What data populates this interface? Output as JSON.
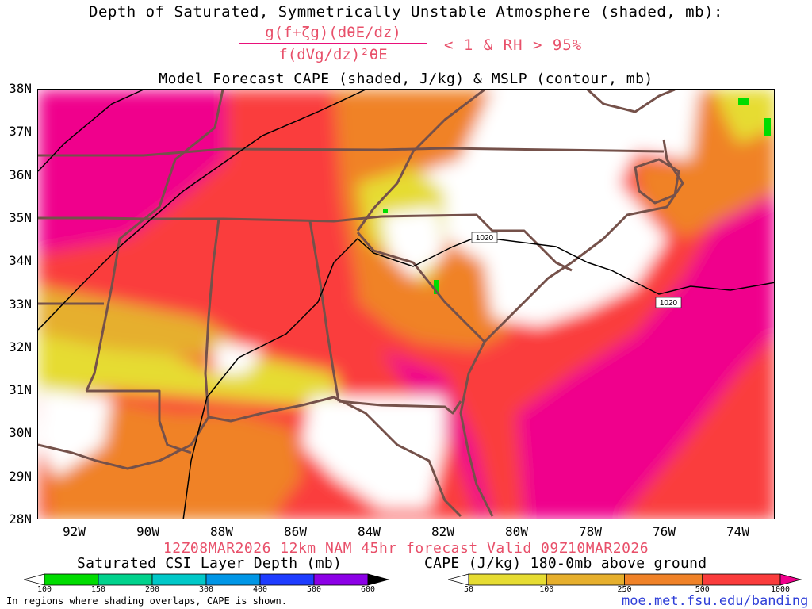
{
  "header": {
    "title": "Depth of Saturated, Symmetrically Unstable Atmosphere (shaded, mb):",
    "criterion_numerator": "g(f+ζg)(dθE/dz)",
    "criterion_denominator": "f(dVg/dz)²θE",
    "criterion_condition": "< 1 & RH > 95%",
    "subtitle": "Model Forecast CAPE (shaded, J/kg) & MSLP (contour, mb)"
  },
  "chart_data": {
    "type": "map",
    "lat_labels": [
      "38N",
      "37N",
      "36N",
      "35N",
      "34N",
      "33N",
      "32N",
      "31N",
      "30N",
      "29N",
      "28N"
    ],
    "lon_labels": [
      "92W",
      "90W",
      "88W",
      "86W",
      "84W",
      "82W",
      "80W",
      "78W",
      "76W",
      "74W"
    ],
    "lat_range": [
      28,
      38
    ],
    "lon_range": [
      -93,
      -73
    ],
    "mslp_contours": [
      {
        "label": "1020"
      },
      {
        "label": "1020"
      }
    ],
    "cape_colorbar": {
      "title": "CAPE (J/kg) 180-0mb above ground",
      "ticks": [
        "50",
        "100",
        "250",
        "500",
        "1000"
      ],
      "colors": [
        "#ffffff",
        "#e6dc32",
        "#e6af2d",
        "#f08228",
        "#fa3c3c",
        "#f0008c"
      ]
    },
    "csi_colorbar": {
      "title": "Saturated CSI Layer Depth (mb)",
      "ticks": [
        "100",
        "150",
        "200",
        "300",
        "400",
        "500",
        "600"
      ],
      "colors": [
        "#ffffff",
        "#00dc00",
        "#00d28c",
        "#00c8c8",
        "#0096e6",
        "#1e3cff",
        "#8c00e6",
        "#000000"
      ]
    }
  },
  "footer": {
    "valid": "12Z08MAR2026 12km NAM 45hr forecast Valid 09Z10MAR2026",
    "note": "In regions where shading overlaps, CAPE is shown.",
    "site": "moe.met.fsu.edu/banding"
  }
}
